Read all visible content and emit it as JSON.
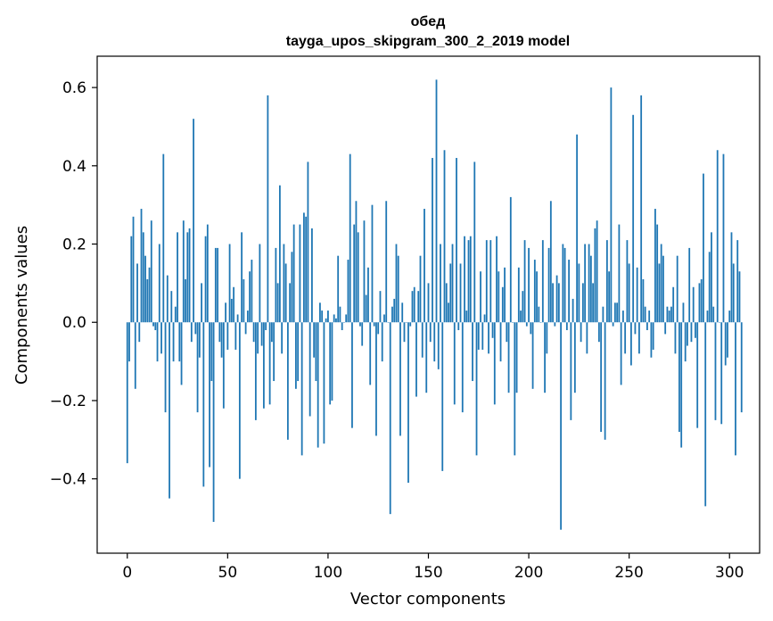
{
  "chart_data": {
    "type": "bar",
    "title": "обед",
    "subtitle": "tayga_upos_skipgram_300_2_2019 model",
    "xlabel": "Vector components",
    "ylabel": "Components values",
    "xlim": [
      -15,
      315
    ],
    "ylim": [
      -0.59,
      0.68
    ],
    "xticks": [
      0,
      50,
      100,
      150,
      200,
      250,
      300
    ],
    "xtick_labels": [
      "0",
      "50",
      "100",
      "150",
      "200",
      "250",
      "300"
    ],
    "yticks": [
      -0.4,
      -0.2,
      0.0,
      0.2,
      0.4,
      0.6
    ],
    "ytick_labels": [
      "−0.4",
      "−0.2",
      "0.0",
      "0.2",
      "0.4",
      "0.6"
    ],
    "color": "#1f77b4",
    "grid": false,
    "values": [
      -0.36,
      -0.1,
      0.22,
      0.27,
      -0.17,
      0.15,
      -0.05,
      0.29,
      0.23,
      0.17,
      0.11,
      0.14,
      0.26,
      -0.01,
      -0.02,
      -0.1,
      0.2,
      -0.08,
      0.43,
      -0.23,
      0.12,
      -0.45,
      0.08,
      -0.1,
      0.04,
      0.23,
      -0.1,
      -0.16,
      0.26,
      0.11,
      0.23,
      0.24,
      -0.05,
      0.52,
      -0.03,
      -0.23,
      -0.09,
      0.1,
      -0.42,
      0.22,
      0.25,
      -0.37,
      -0.15,
      -0.51,
      0.19,
      0.19,
      -0.05,
      -0.09,
      -0.22,
      0.05,
      -0.07,
      0.2,
      0.06,
      0.09,
      -0.07,
      0.02,
      -0.4,
      0.23,
      0.11,
      -0.03,
      0.03,
      0.13,
      0.16,
      -0.05,
      -0.25,
      -0.08,
      0.2,
      -0.06,
      -0.22,
      -0.02,
      0.58,
      -0.21,
      -0.05,
      -0.15,
      0.19,
      0.1,
      0.35,
      -0.08,
      0.2,
      0.15,
      -0.3,
      0.1,
      0.18,
      0.25,
      -0.17,
      -0.15,
      0.25,
      -0.34,
      0.28,
      0.27,
      0.41,
      -0.24,
      0.24,
      -0.09,
      -0.15,
      -0.32,
      0.05,
      0.03,
      -0.31,
      0.01,
      0.03,
      -0.21,
      -0.2,
      0.02,
      0.01,
      0.17,
      0.04,
      -0.02,
      0.0,
      0.02,
      0.16,
      0.43,
      -0.27,
      0.25,
      0.31,
      0.23,
      -0.01,
      -0.06,
      0.26,
      0.07,
      0.14,
      -0.16,
      0.3,
      -0.01,
      -0.29,
      -0.03,
      0.08,
      -0.1,
      0.02,
      0.31,
      0.0,
      -0.49,
      0.04,
      0.06,
      0.2,
      0.17,
      -0.29,
      0.05,
      -0.05,
      0.0,
      -0.41,
      -0.01,
      0.08,
      0.09,
      -0.19,
      0.08,
      0.17,
      -0.09,
      0.29,
      -0.18,
      0.1,
      -0.05,
      0.42,
      -0.1,
      0.62,
      -0.12,
      0.2,
      -0.38,
      0.44,
      0.1,
      0.05,
      0.15,
      0.2,
      -0.21,
      0.42,
      -0.02,
      0.15,
      -0.23,
      0.22,
      0.03,
      0.21,
      0.22,
      -0.15,
      0.41,
      -0.34,
      -0.07,
      0.13,
      -0.07,
      0.02,
      0.21,
      -0.08,
      0.21,
      -0.04,
      -0.21,
      0.22,
      0.13,
      -0.1,
      0.09,
      0.14,
      -0.05,
      -0.18,
      0.32,
      0.0,
      -0.34,
      -0.18,
      0.14,
      0.03,
      0.08,
      0.21,
      -0.01,
      0.19,
      -0.03,
      -0.17,
      0.16,
      0.13,
      0.04,
      0.0,
      0.21,
      -0.18,
      -0.08,
      0.19,
      0.31,
      0.1,
      -0.01,
      0.12,
      0.1,
      -0.53,
      0.2,
      0.19,
      -0.02,
      0.16,
      -0.25,
      0.06,
      -0.18,
      0.48,
      0.15,
      -0.05,
      0.1,
      0.2,
      -0.08,
      0.2,
      0.17,
      0.1,
      0.24,
      0.26,
      -0.05,
      -0.28,
      0.04,
      -0.3,
      0.21,
      0.13,
      0.6,
      -0.01,
      0.05,
      0.05,
      0.25,
      -0.16,
      0.03,
      -0.08,
      0.21,
      0.15,
      -0.11,
      0.53,
      -0.03,
      0.14,
      -0.08,
      0.58,
      0.11,
      0.04,
      -0.02,
      0.03,
      -0.09,
      -0.07,
      0.29,
      0.25,
      0.15,
      0.2,
      0.17,
      -0.03,
      0.04,
      0.03,
      0.04,
      0.09,
      -0.08,
      0.17,
      -0.28,
      -0.32,
      0.05,
      -0.1,
      -0.06,
      0.19,
      -0.05,
      0.09,
      -0.04,
      -0.27,
      0.1,
      0.11,
      0.38,
      -0.47,
      0.03,
      0.18,
      0.23,
      0.04,
      -0.25,
      0.44,
      0.0,
      -0.26,
      0.43,
      -0.11,
      -0.09,
      0.03,
      0.23,
      0.15,
      -0.34,
      0.21,
      0.13,
      -0.23
    ]
  }
}
